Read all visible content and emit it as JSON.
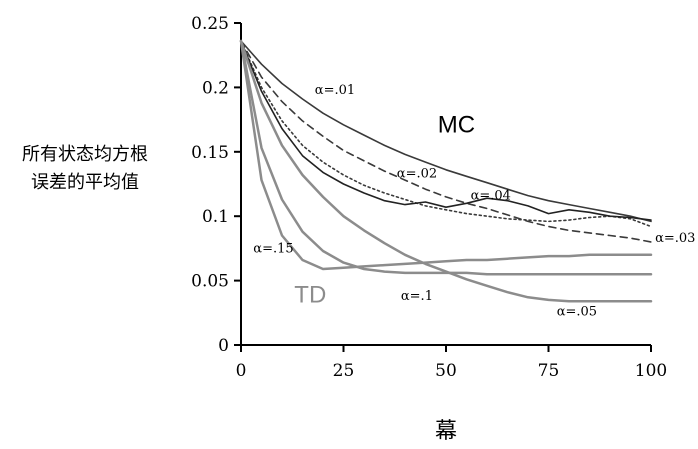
{
  "chart_data": {
    "type": "line",
    "xlabel": "幕",
    "ylabel_lines": [
      "所有状态均方根",
      "误差的平均值"
    ],
    "xlim": [
      0,
      100
    ],
    "ylim": [
      0,
      0.25
    ],
    "x_ticks": [
      0,
      25,
      50,
      75,
      100
    ],
    "x_tick_labels": [
      "0",
      "25",
      "50",
      "75",
      "100"
    ],
    "y_ticks": [
      0,
      0.05,
      0.1,
      0.15,
      0.2,
      0.25
    ],
    "y_tick_labels": [
      "0",
      "0.05",
      "0.1",
      "0.15",
      "0.2",
      "0.25"
    ],
    "grid": false,
    "group_labels": [
      {
        "text": "MC",
        "color": "#000000",
        "x": 48,
        "y": 0.165
      },
      {
        "text": "TD",
        "color": "#8c8c8c",
        "x": 13,
        "y": 0.033
      }
    ],
    "series": [
      {
        "label": "α=.01",
        "group": "MC",
        "color": "#3a3a3a",
        "dash": "solid",
        "label_at": {
          "x": 18,
          "y": 0.195
        },
        "x": [
          0,
          5,
          10,
          15,
          20,
          25,
          30,
          35,
          40,
          45,
          50,
          55,
          60,
          65,
          70,
          75,
          80,
          85,
          90,
          95,
          100
        ],
        "y": [
          0.236,
          0.218,
          0.203,
          0.191,
          0.18,
          0.171,
          0.163,
          0.155,
          0.148,
          0.142,
          0.136,
          0.131,
          0.126,
          0.121,
          0.116,
          0.112,
          0.109,
          0.106,
          0.103,
          0.1,
          0.096
        ]
      },
      {
        "label": "α=.02",
        "group": "MC",
        "color": "#3a3a3a",
        "dash": "dashed",
        "label_at": {
          "x": 38,
          "y": 0.13
        },
        "x": [
          0,
          5,
          10,
          15,
          20,
          25,
          30,
          35,
          40,
          45,
          50,
          55,
          60,
          65,
          70,
          75,
          80,
          85,
          90,
          95,
          100
        ],
        "y": [
          0.236,
          0.208,
          0.189,
          0.174,
          0.162,
          0.151,
          0.143,
          0.135,
          0.128,
          0.121,
          0.115,
          0.11,
          0.106,
          0.101,
          0.096,
          0.092,
          0.089,
          0.087,
          0.085,
          0.083,
          0.08
        ]
      },
      {
        "label": "α=.03",
        "group": "MC",
        "color": "#3a3a3a",
        "dash": "dotted",
        "label_at": {
          "x": 101,
          "y": 0.08
        },
        "x": [
          0,
          5,
          10,
          15,
          20,
          25,
          30,
          35,
          40,
          45,
          50,
          55,
          60,
          65,
          70,
          75,
          80,
          85,
          90,
          95,
          100
        ],
        "y": [
          0.236,
          0.2,
          0.174,
          0.155,
          0.142,
          0.132,
          0.124,
          0.118,
          0.113,
          0.108,
          0.105,
          0.102,
          0.1,
          0.098,
          0.097,
          0.096,
          0.097,
          0.099,
          0.1,
          0.098,
          0.092
        ]
      },
      {
        "label": "α=.04",
        "group": "MC",
        "color": "#222222",
        "dash": "solid",
        "label_at": {
          "x": 56,
          "y": 0.113
        },
        "x": [
          0,
          5,
          10,
          15,
          20,
          25,
          30,
          35,
          40,
          45,
          50,
          55,
          60,
          65,
          70,
          75,
          80,
          85,
          90,
          95,
          100
        ],
        "y": [
          0.236,
          0.197,
          0.168,
          0.147,
          0.134,
          0.125,
          0.118,
          0.112,
          0.109,
          0.111,
          0.107,
          0.11,
          0.114,
          0.112,
          0.108,
          0.102,
          0.105,
          0.103,
          0.1,
          0.099,
          0.097
        ]
      },
      {
        "label": "α=.05",
        "group": "TD",
        "color": "#8c8c8c",
        "dash": "solid",
        "label_at": {
          "x": 77,
          "y": 0.023
        },
        "x": [
          0,
          5,
          10,
          15,
          20,
          25,
          30,
          35,
          40,
          45,
          50,
          55,
          60,
          65,
          70,
          75,
          80,
          85,
          90,
          95,
          100
        ],
        "y": [
          0.236,
          0.188,
          0.155,
          0.132,
          0.115,
          0.1,
          0.089,
          0.079,
          0.07,
          0.063,
          0.057,
          0.051,
          0.046,
          0.041,
          0.037,
          0.035,
          0.034,
          0.034,
          0.034,
          0.034,
          0.034
        ]
      },
      {
        "label": "α=.1",
        "group": "TD",
        "color": "#8c8c8c",
        "dash": "solid",
        "label_at": {
          "x": 39,
          "y": 0.035
        },
        "x": [
          0,
          5,
          10,
          15,
          20,
          25,
          30,
          35,
          40,
          45,
          50,
          55,
          60,
          65,
          70,
          75,
          80,
          85,
          90,
          95,
          100
        ],
        "y": [
          0.236,
          0.153,
          0.113,
          0.088,
          0.073,
          0.064,
          0.059,
          0.057,
          0.056,
          0.056,
          0.056,
          0.056,
          0.055,
          0.055,
          0.055,
          0.055,
          0.055,
          0.055,
          0.055,
          0.055,
          0.055
        ]
      },
      {
        "label": "α=.15",
        "group": "TD",
        "color": "#8c8c8c",
        "dash": "solid",
        "label_at": {
          "x": 3,
          "y": 0.072
        },
        "x": [
          0,
          5,
          10,
          15,
          20,
          25,
          30,
          35,
          40,
          45,
          50,
          55,
          60,
          65,
          70,
          75,
          80,
          85,
          90,
          95,
          100
        ],
        "y": [
          0.236,
          0.128,
          0.085,
          0.066,
          0.059,
          0.06,
          0.061,
          0.062,
          0.063,
          0.064,
          0.065,
          0.066,
          0.066,
          0.067,
          0.068,
          0.069,
          0.069,
          0.07,
          0.07,
          0.07,
          0.07
        ]
      }
    ]
  }
}
